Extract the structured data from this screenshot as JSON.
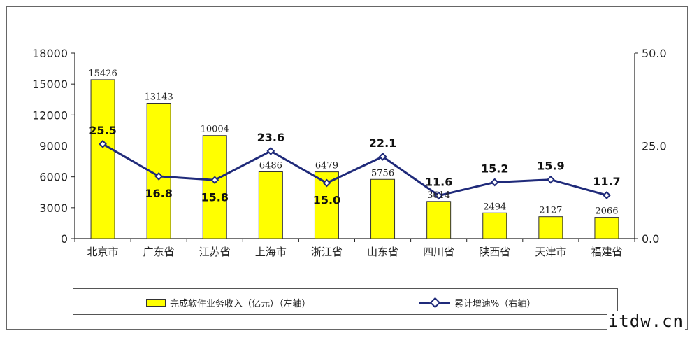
{
  "chart_data": {
    "type": "bar",
    "categories": [
      "北京市",
      "广东省",
      "江苏省",
      "上海市",
      "浙江省",
      "山东省",
      "四川省",
      "陕西省",
      "天津市",
      "福建省"
    ],
    "series": [
      {
        "name": "完成软件业务收入（亿元）（左轴）",
        "type": "bar",
        "axis": "left",
        "color": "#ffff00",
        "values": [
          15426,
          13143,
          10004,
          6486,
          6479,
          5756,
          3614,
          2494,
          2127,
          2066
        ],
        "labels": [
          "15426",
          "13143",
          "10004",
          "6486",
          "6479",
          "5756",
          "3614",
          "2494",
          "2127",
          "2066"
        ]
      },
      {
        "name": "累计增速%（右轴）",
        "type": "line",
        "axis": "right",
        "color": "#1f2a7a",
        "values": [
          25.5,
          16.8,
          15.8,
          23.6,
          15.0,
          22.1,
          11.6,
          15.2,
          15.9,
          11.7
        ],
        "labels": [
          "25.5",
          "16.8",
          "15.8",
          "23.6",
          "15.0",
          "22.1",
          "11.6",
          "15.2",
          "15.9",
          "11.7"
        ]
      }
    ],
    "y_left": {
      "range": [
        0,
        18000
      ],
      "ticks": [
        "0",
        "3000",
        "6000",
        "9000",
        "12000",
        "15000",
        "18000"
      ]
    },
    "y_right": {
      "range": [
        0,
        50
      ],
      "ticks": [
        "0.0",
        "25.0",
        "50.0"
      ]
    },
    "grid": false,
    "legend_position": "bottom"
  },
  "watermark": "itdw.cn"
}
